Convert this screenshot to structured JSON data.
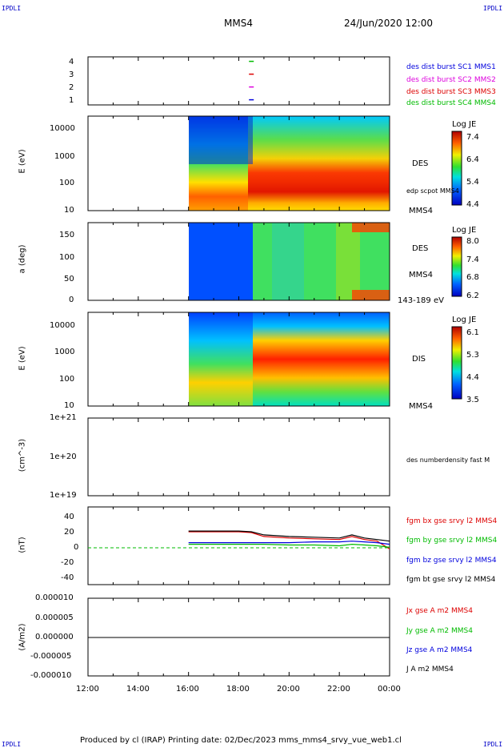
{
  "header": {
    "corner_tl": "IPDLI",
    "corner_tr": "IPDLI",
    "corner_bl": "IPDLI",
    "corner_br": "IPDLI",
    "spacecraft": "MMS4",
    "date": "24/Jun/2020 12:00"
  },
  "footer": {
    "text": "Produced by cl (IRAP)   Printing date: 02/Dec/2023   mms_mms4_srvy_vue_web1.cl"
  },
  "x_axis": {
    "ticks": [
      "12:00",
      "14:00",
      "16:00",
      "18:00",
      "20:00",
      "22:00",
      "00:00"
    ]
  },
  "panels": {
    "burst": {
      "ticks": [
        "4",
        "3",
        "2",
        "1"
      ],
      "labels": [
        {
          "text": "des dist burst SC1 MMS1",
          "color": "#0000dd"
        },
        {
          "text": "des dist burst SC2 MMS2",
          "color": "#dd00dd"
        },
        {
          "text": "des dist burst SC3 MMS3",
          "color": "#dd0000"
        },
        {
          "text": "des dist burst SC4 MMS4",
          "color": "#00bb00"
        }
      ]
    },
    "des_energy": {
      "ylabel": "E (eV)",
      "ticks": [
        "10000",
        "1000",
        "100",
        "10"
      ],
      "label": "DES",
      "scpot_label": "edp scpot MMS4",
      "bottom_label": "MMS4",
      "colorbar": {
        "title": "Log JE",
        "ticks": [
          "7.4",
          "6.4",
          "5.4",
          "4.4"
        ]
      }
    },
    "des_pitch": {
      "ylabel": "a (deg)",
      "ticks": [
        "150",
        "100",
        "50",
        "0"
      ],
      "label": "DES",
      "sc_label": "MMS4",
      "range_label": "143-189 eV",
      "colorbar": {
        "title": "Log JE",
        "ticks": [
          "8.0",
          "7.4",
          "6.8",
          "6.2"
        ]
      }
    },
    "dis_energy": {
      "ylabel": "E (eV)",
      "ticks": [
        "10000",
        "1000",
        "100",
        "10"
      ],
      "label": "DIS",
      "bottom_label": "MMS4",
      "colorbar": {
        "title": "Log JE",
        "ticks": [
          "6.1",
          "5.3",
          "4.4",
          "3.5"
        ]
      }
    },
    "density": {
      "ylabel": "(cm^-3)",
      "ticks": [
        "1e+21",
        "1e+20",
        "1e+19"
      ],
      "label": "des numberdensity fast M"
    },
    "bfield": {
      "ylabel": "(nT)",
      "ticks": [
        "40",
        "20",
        "0",
        "-20",
        "-40"
      ],
      "labels": [
        {
          "text": "fgm bx gse srvy l2 MMS4",
          "color": "#dd0000"
        },
        {
          "text": "fgm by gse srvy l2 MMS4",
          "color": "#00bb00"
        },
        {
          "text": "fgm bz gse srvy l2 MMS4",
          "color": "#0000dd"
        },
        {
          "text": "fgm bt gse srvy l2 MMS4",
          "color": "#000000"
        }
      ]
    },
    "current": {
      "ylabel": "(A/m2)",
      "ticks": [
        "0.000010",
        "0.000005",
        "0.000000",
        "-0.000005",
        "-0.000010"
      ],
      "labels": [
        {
          "text": "Jx gse A m2 MMS4",
          "color": "#dd0000"
        },
        {
          "text": "Jy gse A m2 MMS4",
          "color": "#00bb00"
        },
        {
          "text": "Jz gse A m2 MMS4",
          "color": "#0000dd"
        },
        {
          "text": "J A m2 MMS4",
          "color": "#000000"
        }
      ]
    }
  },
  "chart_data": {
    "type": "line",
    "x_range": [
      "12:00",
      "00:00"
    ],
    "data_start": "16:00",
    "burst_marks": [
      {
        "sc": 4,
        "time": "18:30",
        "color": "#00bb00"
      },
      {
        "sc": 3,
        "time": "18:30",
        "color": "#dd0000"
      },
      {
        "sc": 2,
        "time": "18:30",
        "color": "#dd00dd"
      },
      {
        "sc": 1,
        "time": "18:30",
        "color": "#0000dd"
      }
    ],
    "bfield": {
      "ylim": [
        -50,
        50
      ],
      "x": [
        "16:00",
        "17:00",
        "18:00",
        "18:30",
        "19:00",
        "20:00",
        "21:00",
        "22:00",
        "22:30",
        "23:00",
        "23:30",
        "00:00"
      ],
      "series": [
        {
          "name": "fgm bx gse srvy l2 MMS4",
          "color": "#dd0000",
          "values": [
            18,
            18,
            18,
            17,
            12,
            10,
            9,
            8,
            12,
            8,
            6,
            -4
          ]
        },
        {
          "name": "fgm by gse srvy l2 MMS4",
          "color": "#00bb00",
          "values": [
            2,
            2,
            2,
            2,
            2,
            1,
            1,
            0,
            2,
            1,
            0,
            -2
          ]
        },
        {
          "name": "fgm bz gse srvy l2 MMS4",
          "color": "#0000dd",
          "values": [
            4,
            4,
            4,
            4,
            4,
            4,
            5,
            5,
            6,
            5,
            4,
            2
          ]
        },
        {
          "name": "fgm bt gse srvy l2 MMS4",
          "color": "#000000",
          "values": [
            19,
            19,
            19,
            18,
            14,
            12,
            11,
            10,
            14,
            10,
            8,
            6
          ]
        }
      ]
    },
    "current": {
      "ylim": [
        -1e-05,
        1e-05
      ],
      "values_near": 0.0
    }
  }
}
